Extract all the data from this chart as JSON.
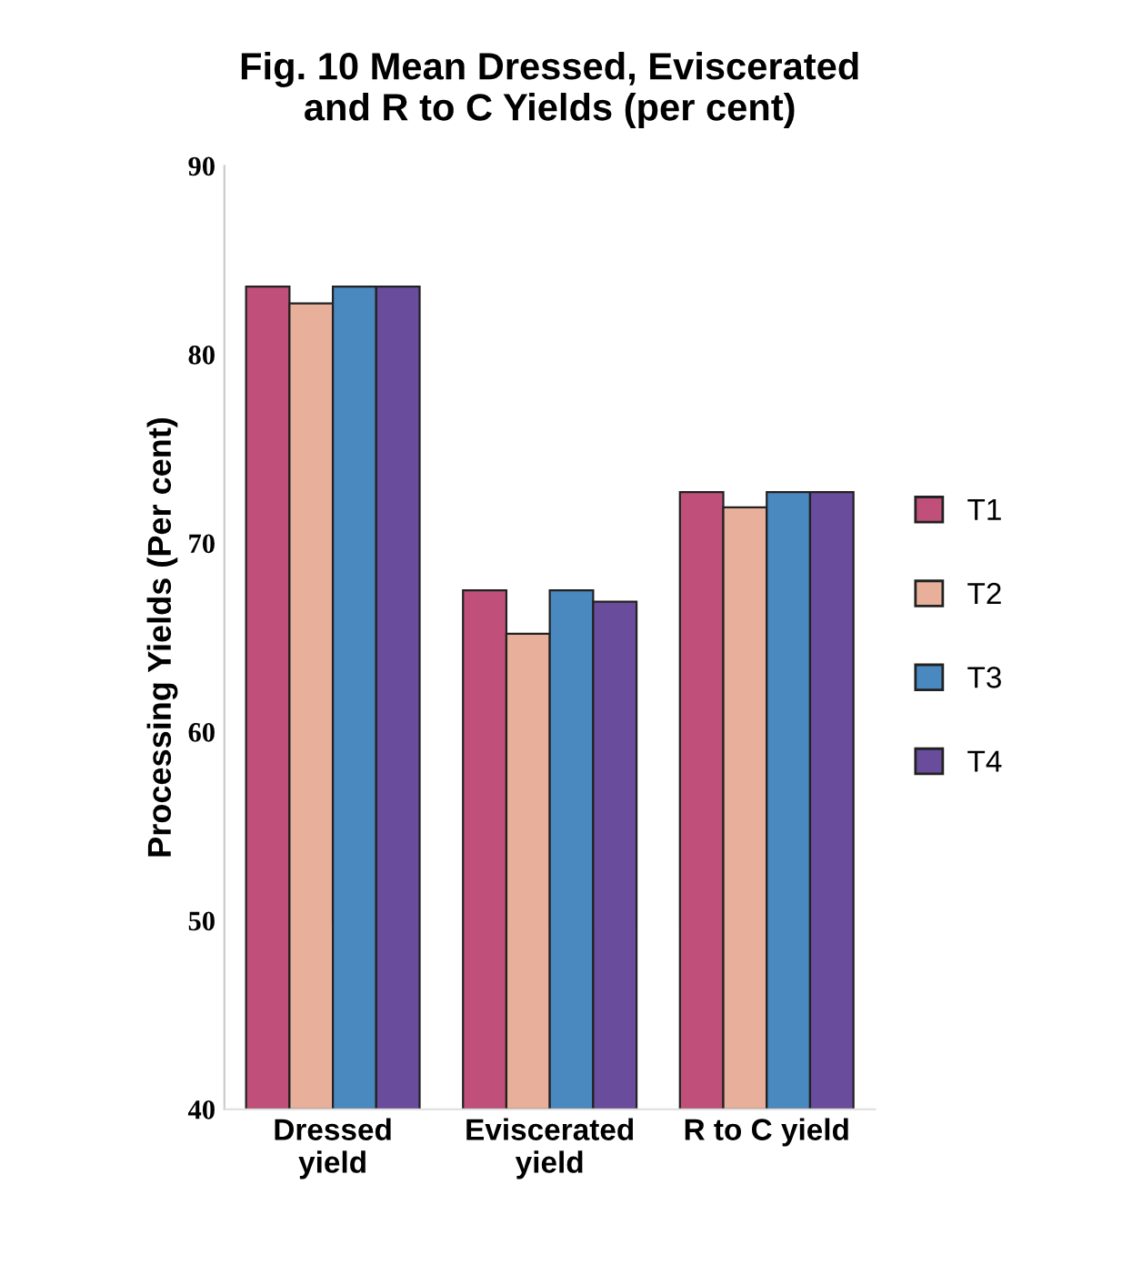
{
  "chart_data": {
    "type": "bar",
    "title": "Fig. 10 Mean Dressed, Eviscerated\nand R to C Yields (per cent)",
    "ylabel": "Processing Yields (Per cent)",
    "categories": [
      "Dressed\nyield",
      "Eviscerated\nyield",
      "R to C yield"
    ],
    "series": [
      {
        "name": "T1",
        "color": "#c0507a",
        "values": [
          83.6,
          67.5,
          72.7
        ]
      },
      {
        "name": "T2",
        "color": "#e8b09a",
        "values": [
          82.7,
          65.2,
          71.9
        ]
      },
      {
        "name": "T3",
        "color": "#4a88c0",
        "values": [
          83.6,
          67.5,
          72.7
        ]
      },
      {
        "name": "T4",
        "color": "#6a4c9c",
        "values": [
          83.6,
          66.9,
          72.7
        ]
      }
    ],
    "ylim": [
      40,
      90
    ],
    "yticks": [
      40,
      50,
      60,
      70,
      80,
      90
    ],
    "grid": false,
    "legend": "right"
  }
}
